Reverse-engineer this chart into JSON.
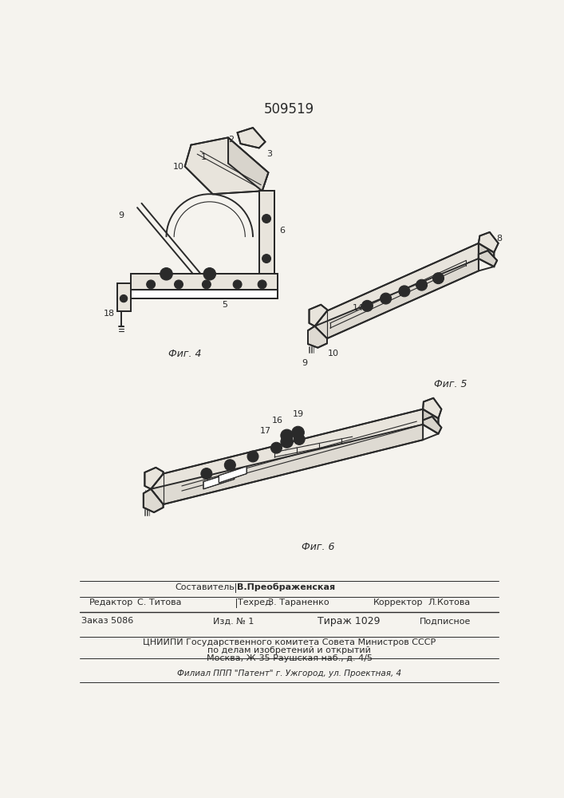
{
  "patent_number": "509519",
  "bg_color": "#f5f3ee",
  "line_color": "#2a2a2a",
  "footer": {
    "sestavitel": "Составитель",
    "sestavitel_name": "В.Преображенская",
    "redaktor_label": "Редактор",
    "redaktor_name": "С. Титова",
    "tekhred_label": "Техред",
    "tekhred_name": "З. Тараненко",
    "korrektor_label": "Корректор",
    "korrektor_name": "Л.Котова",
    "zakaz": "Заказ 5086",
    "izd": "Изд. № 1",
    "tirazh": "Тираж 1029",
    "podpisnoe": "Подписное",
    "tsniipi_line1": "ЦНИИПИ Государственного комитета Совета Министров СССР",
    "tsniipi_line2": "по делам изобретений и открытий",
    "tsniipi_line3": "Москва, Ж-35 Раушская наб., д. 4/5",
    "filial": "Филиал ППП \"Патент\" г. Ужгород, ул. Проектная, 4"
  },
  "fig4_caption": "Фиг. 4",
  "fig5_caption": "Фиг. 5",
  "fig6_caption": "Фиг. 6"
}
